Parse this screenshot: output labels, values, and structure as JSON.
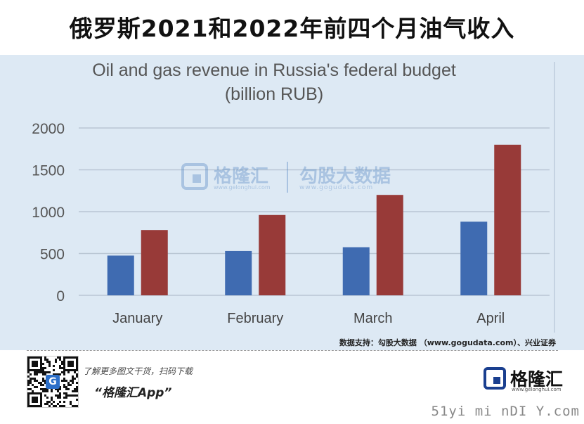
{
  "headline": "俄罗斯2021和2022年前四个月油气收入",
  "chart_data": {
    "type": "bar",
    "title_line1": "Oil and gas revenue in Russia's federal budget",
    "title_line2": "(billion RUB)",
    "categories": [
      "January",
      "February",
      "March",
      "April"
    ],
    "series": [
      {
        "values": [
          475,
          530,
          575,
          880
        ],
        "color": "#3f6bb1"
      },
      {
        "values": [
          780,
          960,
          1200,
          1800
        ],
        "color": "#983a38"
      }
    ],
    "ylim": [
      0,
      2000
    ],
    "yticks": [
      0,
      500,
      1000,
      1500,
      2000
    ],
    "grid": true
  },
  "watermark": {
    "brand": "格隆汇",
    "brand_url": "www.gelonghui.com",
    "brand2": "勾股大数据",
    "brand2_url": "www.gogudata.com"
  },
  "source": "数据支持：勾股大数据 （www.gogudata.com）、兴业证券",
  "footer": {
    "qr_glyph": "G",
    "tagline": "了解更多图文干货，扫码下载",
    "app_name": "“格隆汇App”",
    "logo_text": "格隆汇",
    "logo_url": "www.gelonghui.com"
  },
  "site_mark": "51yi mi nDI Y.com"
}
